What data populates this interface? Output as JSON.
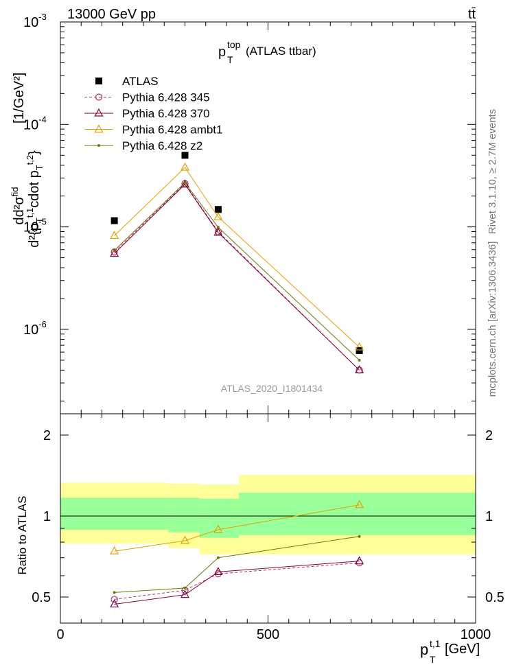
{
  "header": {
    "energy_label": "13000 GeV pp",
    "process_label": "tt̄"
  },
  "plot_title": {
    "main": "p",
    "sup": "top",
    "sub": "T",
    "suffix": "(ATLAS ttbar)"
  },
  "side_labels": {
    "rivet": "Rivet 3.1.10, ≥ 2.7M events",
    "mcplots": "mcplots.cern.ch [arXiv:1306.3436]"
  },
  "analysis_id": "ATLAS_2020_I1801434",
  "y_axis_label_top": "d²σᶠᶦᵈ / d²{p_T^{t,1} cdot p_T^{t,2}} [1/GeV²]",
  "y_axis_label_top_parts": {
    "one_over_sigma": "1",
    "sigma": "σ",
    "d": "d",
    "numer": "d²σ",
    "numer_sup": "fid",
    "denom": "d²{p",
    "denom_sub": "T",
    "denom_sup": "t,1",
    "denom_mid": "cdot p",
    "denom_sub2": "T",
    "denom_sup2": "t,2",
    "denom_end": "}",
    "units": "[1/GeV²]"
  },
  "y_axis_label_bottom": "Ratio to ATLAS",
  "x_axis_label": {
    "main": "p",
    "sub": "T",
    "sup": "t,1",
    "units": "[GeV]"
  },
  "top_y_ticks": [
    "10⁻⁶",
    "10⁻⁵",
    "10⁻⁴",
    "10⁻³"
  ],
  "top_y_tick_parts": [
    {
      "base": "10",
      "exp": "-6"
    },
    {
      "base": "10",
      "exp": "-5"
    },
    {
      "base": "10",
      "exp": "-4"
    },
    {
      "base": "10",
      "exp": "-3"
    }
  ],
  "bottom_y_ticks": [
    "0.5",
    "1",
    "2"
  ],
  "x_ticks": [
    "0",
    "500",
    "1000"
  ],
  "colors": {
    "atlas": "#000000",
    "p345": "#b03060",
    "p370": "#800040",
    "ambt1": "#e6a000",
    "z2": "#6b7a00",
    "band_inner": "#99ff99",
    "band_outer": "#ffff99"
  },
  "chart_data": {
    "type": "scatter",
    "x_scale": "linear",
    "xlim": [
      0,
      1000
    ],
    "top": {
      "y_scale": "log",
      "ylim": [
        1.5e-07,
        0.001
      ],
      "series": [
        {
          "name": "ATLAS",
          "x": [
            130,
            300,
            380,
            720
          ],
          "y": [
            1.15e-05,
            5e-05,
            1.48e-05,
            6.2e-07
          ],
          "marker": "square"
        },
        {
          "name": "Pythia 6.428 345",
          "x": [
            130,
            300,
            380,
            720
          ],
          "y": [
            5.7e-06,
            2.65e-05,
            9e-06,
            4e-07
          ],
          "marker": "circle-open",
          "line": "dashed"
        },
        {
          "name": "Pythia 6.428 370",
          "x": [
            130,
            300,
            380,
            720
          ],
          "y": [
            5.5e-06,
            2.6e-05,
            8.8e-06,
            4e-07
          ],
          "marker": "triangle-open",
          "line": "solid"
        },
        {
          "name": "Pythia 6.428 ambt1",
          "x": [
            130,
            300,
            380,
            720
          ],
          "y": [
            8.2e-06,
            3.8e-05,
            1.25e-05,
            6.7e-07
          ],
          "marker": "triangle-open",
          "line": "solid"
        },
        {
          "name": "Pythia 6.428 z2",
          "x": [
            130,
            300,
            380,
            720
          ],
          "y": [
            5.9e-06,
            2.7e-05,
            9.9e-06,
            5e-07
          ],
          "marker": "dot",
          "line": "solid"
        }
      ]
    },
    "ratio": {
      "y_scale": "log",
      "ylim": [
        0.4,
        2.4
      ],
      "reference_line": 1,
      "bands": [
        {
          "x0": 0,
          "x1": 260,
          "inner": [
            0.89,
            1.17
          ],
          "outer": [
            0.79,
            1.33
          ]
        },
        {
          "x0": 260,
          "x1": 335,
          "inner": [
            0.87,
            1.17
          ],
          "outer": [
            0.76,
            1.32
          ]
        },
        {
          "x0": 335,
          "x1": 430,
          "inner": [
            0.83,
            1.16
          ],
          "outer": [
            0.72,
            1.31
          ]
        },
        {
          "x0": 430,
          "x1": 1000,
          "inner": [
            0.85,
            1.22
          ],
          "outer": [
            0.72,
            1.42
          ]
        }
      ],
      "series": [
        {
          "name": "Pythia 6.428 345",
          "x": [
            130,
            300,
            380,
            720
          ],
          "y": [
            0.49,
            0.53,
            0.61,
            0.67
          ]
        },
        {
          "name": "Pythia 6.428 370",
          "x": [
            130,
            300,
            380,
            720
          ],
          "y": [
            0.47,
            0.51,
            0.62,
            0.68
          ]
        },
        {
          "name": "Pythia 6.428 ambt1",
          "x": [
            130,
            300,
            380,
            720
          ],
          "y": [
            0.74,
            0.81,
            0.89,
            1.1
          ]
        },
        {
          "name": "Pythia 6.428 z2",
          "x": [
            130,
            300,
            380,
            720
          ],
          "y": [
            0.52,
            0.54,
            0.7,
            0.84
          ]
        }
      ]
    }
  }
}
